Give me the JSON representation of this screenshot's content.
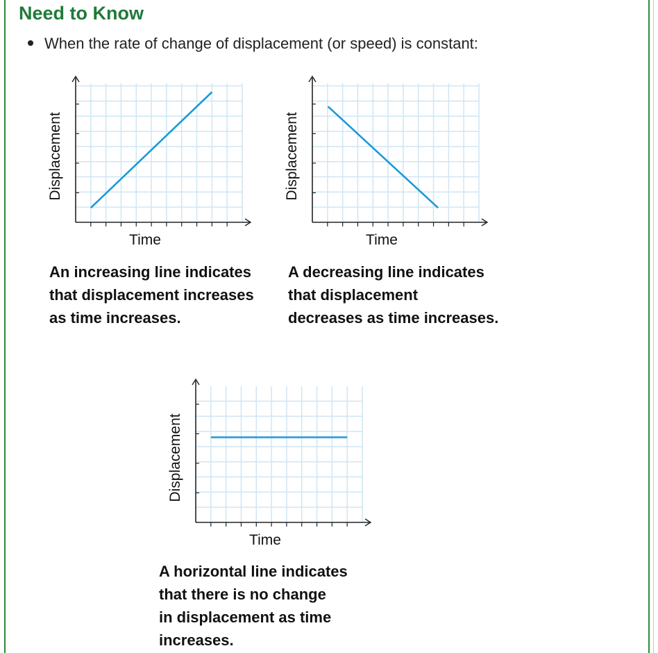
{
  "heading": "Need to Know",
  "bullet": "When the rate of change of displacement (or speed) is constant:",
  "colors": {
    "heading": "#1f7a3a",
    "border": "#2e8b3a",
    "line": "#1a9ad6",
    "grid": "#cfe6f4",
    "axis": "#222222"
  },
  "chart_data": [
    {
      "type": "line",
      "xlabel": "Time",
      "ylabel": "Displacement",
      "x": [
        0,
        8
      ],
      "series": [
        {
          "values": [
            0,
            8
          ]
        }
      ],
      "xlim": [
        -1,
        10
      ],
      "ylim": [
        -1,
        8.6
      ],
      "grid": true,
      "caption": "An increasing line indicates\nthat displacement increases\nas time increases."
    },
    {
      "type": "line",
      "xlabel": "Time",
      "ylabel": "Displacement",
      "x": [
        0,
        7
      ],
      "series": [
        {
          "values": [
            7,
            0
          ]
        }
      ],
      "xlim": [
        -1,
        9.6
      ],
      "ylim": [
        -1,
        8.6
      ],
      "grid": true,
      "caption": "A decreasing line indicates\nthat displacement\ndecreases as time increases."
    },
    {
      "type": "line",
      "xlabel": "Time",
      "ylabel": "Displacement",
      "x": [
        0,
        9
      ],
      "series": [
        {
          "values": [
            4,
            4
          ]
        }
      ],
      "xlim": [
        -1,
        10
      ],
      "ylim": [
        -1,
        7
      ],
      "grid": true,
      "caption": "A horizontal line indicates\nthat there is no change\nin displacement as time\nincreases."
    }
  ]
}
